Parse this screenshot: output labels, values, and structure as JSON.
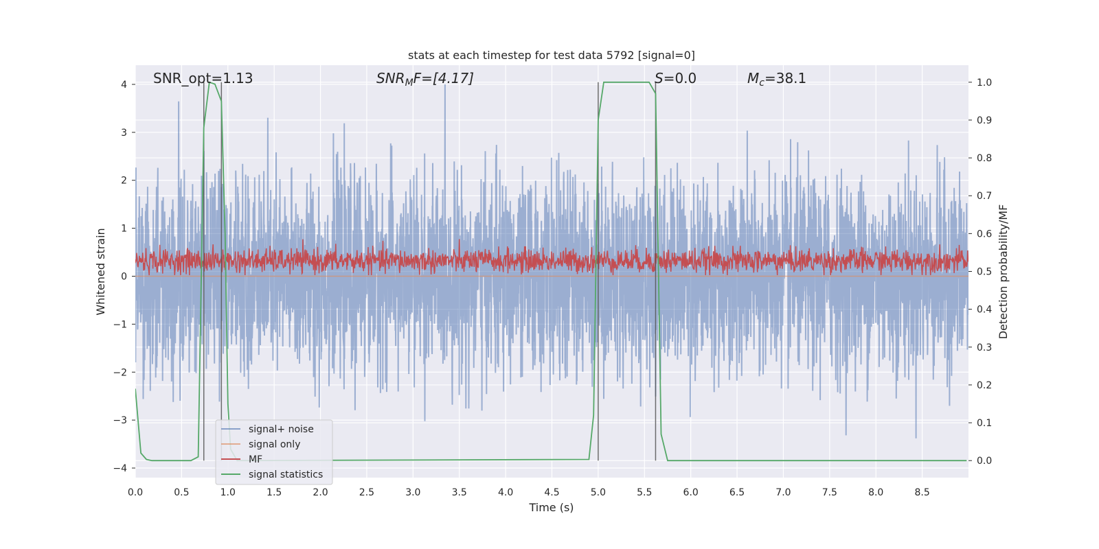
{
  "chart_data": {
    "type": "line",
    "title": "stats at each timestep for test data 5792 [signal=0]",
    "xlabel": "Time (s)",
    "ylabel": "Whitened strain",
    "y2label": "Detection probability/MF",
    "xlim": [
      0,
      9
    ],
    "ylim": [
      -4.2,
      4.4
    ],
    "y2lim": [
      -0.045,
      1.045
    ],
    "x_ticks": [
      "0.0",
      "0.5",
      "1.0",
      "1.5",
      "2.0",
      "2.5",
      "3.0",
      "3.5",
      "4.0",
      "4.5",
      "5.0",
      "5.5",
      "6.0",
      "6.5",
      "7.0",
      "7.5",
      "8.0",
      "8.5"
    ],
    "y_ticks": [
      "4",
      "3",
      "2",
      "1",
      "0",
      "−1",
      "−2",
      "−3",
      "−4"
    ],
    "y2_ticks": [
      "1.0",
      "0.9",
      "0.8",
      "0.7",
      "0.6",
      "0.5",
      "0.4",
      "0.3",
      "0.2",
      "0.1",
      "0.0"
    ],
    "grid": true,
    "legend_position": "lower-left",
    "annotations": {
      "snr_opt": "SNR_opt=1.13",
      "snr_mf_base": "SNR",
      "snr_mf_sub": "M",
      "snr_mf_rest": "F=[4.17]",
      "s": "S",
      "s_rest": "=0.0",
      "mc_base": "M",
      "mc_sub": "c",
      "mc_rest": "=38.1"
    },
    "vertical_lines": [
      0.74,
      0.93,
      5.0,
      5.62
    ],
    "series": [
      {
        "name": "signal+ noise",
        "color": "#4c72b0",
        "style": "noise",
        "amplitude_range": [
          -3.8,
          4.0
        ]
      },
      {
        "name": "signal only",
        "color": "#dd8452",
        "style": "flat"
      },
      {
        "name": "MF",
        "color": "#c44e52",
        "style": "noise",
        "baseline_axis": "y2",
        "amplitude_range": [
          0.49,
          0.6
        ]
      },
      {
        "name": "signal statistics",
        "color": "#55a868",
        "axis": "y2",
        "x": [
          0,
          0.06,
          0.12,
          0.18,
          0.6,
          0.68,
          0.74,
          0.8,
          0.86,
          0.93,
          0.97,
          1.0,
          1.03,
          1.1,
          4.9,
          4.95,
          5.0,
          5.06,
          5.55,
          5.62,
          5.68,
          5.75,
          8.98
        ],
        "y": [
          0.19,
          0.02,
          0.003,
          0.0,
          0.0,
          0.01,
          0.88,
          1.0,
          0.995,
          0.95,
          0.6,
          0.15,
          0.03,
          0.0,
          0.003,
          0.12,
          0.9,
          1.0,
          1.0,
          0.97,
          0.07,
          0.0,
          0.0
        ]
      }
    ]
  }
}
